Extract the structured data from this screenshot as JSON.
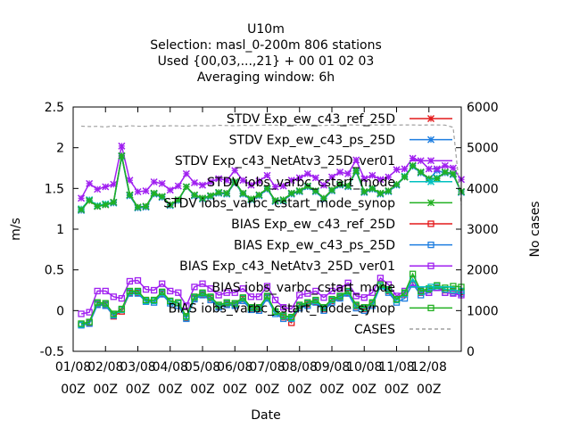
{
  "chart_data": {
    "type": "line",
    "title_lines": [
      "U10m",
      "Selection: masl_0-200m    806 stations",
      "Used {00,03,...,21} + 00 01 02 03",
      "Averaging window:  6h"
    ],
    "xlabel": "Date",
    "ylabel": "m/s",
    "y2label": "No cases",
    "ylim": [
      -0.5,
      2.5
    ],
    "y2lim": [
      0,
      6000
    ],
    "yticks": [
      "-0.5",
      "0",
      "0.5",
      "1",
      "1.5",
      "2",
      "2.5"
    ],
    "y2ticks": [
      "0",
      "1000",
      "2000",
      "3000",
      "4000",
      "5000",
      "6000"
    ],
    "xticks": [
      {
        "top": "01/08",
        "bottom": "00Z"
      },
      {
        "top": "02/08",
        "bottom": "00Z"
      },
      {
        "top": "03/08",
        "bottom": "00Z"
      },
      {
        "top": "04/08",
        "bottom": "00Z"
      },
      {
        "top": "05/08",
        "bottom": "00Z"
      },
      {
        "top": "06/08",
        "bottom": "00Z"
      },
      {
        "top": "07/08",
        "bottom": "00Z"
      },
      {
        "top": "08/08",
        "bottom": "00Z"
      },
      {
        "top": "09/08",
        "bottom": "00Z"
      },
      {
        "top": "10/08",
        "bottom": "00Z"
      },
      {
        "top": "11/08",
        "bottom": "00Z"
      },
      {
        "top": "12/08",
        "bottom": "00Z"
      }
    ],
    "x_days": [
      0.25,
      0.5,
      0.75,
      1.0,
      1.25,
      1.5,
      1.75,
      2.0,
      2.25,
      2.5,
      2.75,
      3.0,
      3.25,
      3.5,
      3.75,
      4.0,
      4.25,
      4.5,
      4.75,
      5.0,
      5.25,
      5.5,
      5.75,
      6.0,
      6.25,
      6.5,
      6.75,
      7.0,
      7.25,
      7.5,
      7.75,
      8.0,
      8.25,
      8.5,
      8.75,
      9.0,
      9.25,
      9.5,
      9.75,
      10.0,
      10.25,
      10.5,
      10.75,
      11.0,
      11.25,
      11.5,
      11.75,
      12.0
    ],
    "grid": false,
    "legend_position": "top-right",
    "series": [
      {
        "name": "STDV Exp_ew_c43_ref_25D",
        "color": "#e41a1c",
        "marker": "x",
        "axis": "y1",
        "values": [
          1.24,
          1.35,
          1.28,
          1.3,
          1.33,
          1.9,
          1.42,
          1.27,
          1.28,
          1.44,
          1.4,
          1.3,
          1.36,
          1.52,
          1.42,
          1.38,
          1.41,
          1.45,
          1.44,
          1.58,
          1.44,
          1.37,
          1.42,
          1.5,
          1.35,
          1.36,
          1.44,
          1.47,
          1.53,
          1.47,
          1.38,
          1.48,
          1.55,
          1.53,
          1.72,
          1.46,
          1.5,
          1.44,
          1.47,
          1.55,
          1.64,
          1.78,
          1.7,
          1.62,
          1.62,
          1.7,
          1.68,
          1.46
        ]
      },
      {
        "name": "STDV Exp_ew_c43_ps_25D",
        "color": "#1e7ee0",
        "marker": "x",
        "axis": "y1",
        "values": [
          1.23,
          1.36,
          1.28,
          1.3,
          1.32,
          1.89,
          1.41,
          1.26,
          1.27,
          1.43,
          1.39,
          1.29,
          1.35,
          1.52,
          1.41,
          1.37,
          1.4,
          1.44,
          1.43,
          1.57,
          1.43,
          1.36,
          1.41,
          1.49,
          1.34,
          1.35,
          1.43,
          1.46,
          1.52,
          1.46,
          1.37,
          1.47,
          1.54,
          1.52,
          1.71,
          1.45,
          1.49,
          1.43,
          1.46,
          1.54,
          1.64,
          1.77,
          1.69,
          1.61,
          1.72,
          1.69,
          1.67,
          1.45
        ]
      },
      {
        "name": "STDV Exp_c43_NetAtv3_25D_ver01",
        "color": "#a020f0",
        "marker": "x",
        "axis": "y1",
        "values": [
          1.38,
          1.56,
          1.49,
          1.52,
          1.55,
          2.02,
          1.6,
          1.46,
          1.47,
          1.58,
          1.56,
          1.48,
          1.53,
          1.68,
          1.57,
          1.54,
          1.58,
          1.62,
          1.6,
          1.72,
          1.6,
          1.54,
          1.59,
          1.66,
          1.52,
          1.53,
          1.6,
          1.63,
          1.68,
          1.63,
          1.54,
          1.64,
          1.7,
          1.68,
          1.85,
          1.62,
          1.66,
          1.61,
          1.64,
          1.73,
          1.74,
          1.87,
          1.84,
          1.74,
          1.74,
          1.78,
          1.75,
          1.61
        ]
      },
      {
        "name": "STDV iobs_varbc_cstart_mode",
        "color": "#00c0c0",
        "marker": "x",
        "axis": "y1",
        "values": [
          1.25,
          1.36,
          1.29,
          1.31,
          1.33,
          1.9,
          1.42,
          1.27,
          1.28,
          1.44,
          1.4,
          1.3,
          1.36,
          1.52,
          1.42,
          1.38,
          1.41,
          1.45,
          1.44,
          1.58,
          1.44,
          1.37,
          1.42,
          1.5,
          1.35,
          1.36,
          1.44,
          1.47,
          1.53,
          1.47,
          1.38,
          1.48,
          1.55,
          1.53,
          1.72,
          1.46,
          1.5,
          1.44,
          1.47,
          1.55,
          1.65,
          1.78,
          1.7,
          1.62,
          1.63,
          1.7,
          1.68,
          1.46
        ]
      },
      {
        "name": "STDV iobs_varbc_cstart_mode_synop",
        "color": "#22b022",
        "marker": "x",
        "axis": "y1",
        "values": [
          1.24,
          1.35,
          1.28,
          1.3,
          1.33,
          1.9,
          1.42,
          1.27,
          1.28,
          1.44,
          1.4,
          1.3,
          1.36,
          1.52,
          1.42,
          1.38,
          1.41,
          1.45,
          1.44,
          1.58,
          1.44,
          1.37,
          1.42,
          1.5,
          1.35,
          1.36,
          1.44,
          1.47,
          1.53,
          1.47,
          1.38,
          1.48,
          1.55,
          1.53,
          1.72,
          1.46,
          1.5,
          1.44,
          1.47,
          1.55,
          1.64,
          1.78,
          1.7,
          1.62,
          1.62,
          1.7,
          1.68,
          1.46
        ]
      },
      {
        "name": "BIAS Exp_ew_c43_ref_25D",
        "color": "#e41a1c",
        "marker": "square",
        "axis": "y1",
        "values": [
          -0.17,
          -0.15,
          0.08,
          0.07,
          -0.07,
          -0.01,
          0.22,
          0.22,
          0.12,
          0.12,
          0.21,
          0.11,
          0.09,
          -0.09,
          0.15,
          0.2,
          0.15,
          0.05,
          0.08,
          0.07,
          0.14,
          0.02,
          0.02,
          0.16,
          -0.02,
          -0.08,
          -0.15,
          0.05,
          0.08,
          0.11,
          0.02,
          0.12,
          0.16,
          0.22,
          0.05,
          0.02,
          0.08,
          0.3,
          0.24,
          0.13,
          0.2,
          0.38,
          0.22,
          0.25,
          0.28,
          0.25,
          0.24,
          0.23
        ]
      },
      {
        "name": "BIAS Exp_ew_c43_ps_25D",
        "color": "#1e7ee0",
        "marker": "square",
        "axis": "y1",
        "values": [
          -0.18,
          -0.16,
          0.07,
          0.06,
          -0.06,
          0.01,
          0.21,
          0.21,
          0.11,
          0.1,
          0.2,
          0.09,
          0.06,
          -0.1,
          0.14,
          0.19,
          0.13,
          0.04,
          0.07,
          0.06,
          0.12,
          0.01,
          0.0,
          0.15,
          -0.04,
          -0.1,
          -0.1,
          0.03,
          0.06,
          0.1,
          0.0,
          0.1,
          0.15,
          0.21,
          0.03,
          0.0,
          0.06,
          0.3,
          0.22,
          0.1,
          0.15,
          0.33,
          0.19,
          0.22,
          0.28,
          0.22,
          0.22,
          0.21
        ]
      },
      {
        "name": "BIAS Exp_c43_NetAtv3_25D_ver01",
        "color": "#a020f0",
        "marker": "square",
        "axis": "y1",
        "values": [
          -0.04,
          -0.02,
          0.24,
          0.24,
          0.17,
          0.15,
          0.36,
          0.37,
          0.26,
          0.25,
          0.33,
          0.24,
          0.22,
          0.06,
          0.29,
          0.33,
          0.27,
          0.19,
          0.22,
          0.22,
          0.27,
          0.17,
          0.17,
          0.3,
          0.13,
          0.04,
          0.02,
          0.19,
          0.21,
          0.24,
          0.16,
          0.24,
          0.27,
          0.34,
          0.18,
          0.16,
          0.22,
          0.4,
          0.32,
          0.18,
          0.24,
          0.32,
          0.25,
          0.22,
          0.28,
          0.22,
          0.21,
          0.19
        ]
      },
      {
        "name": "BIAS iobs_varbc_cstart_mode",
        "color": "#00c0c0",
        "marker": "square",
        "axis": "y1",
        "values": [
          -0.17,
          -0.14,
          0.09,
          0.08,
          -0.05,
          0.01,
          0.23,
          0.23,
          0.12,
          0.12,
          0.22,
          0.11,
          0.09,
          -0.08,
          0.16,
          0.21,
          0.16,
          0.06,
          0.09,
          0.08,
          0.15,
          0.03,
          0.03,
          0.17,
          -0.02,
          -0.07,
          -0.09,
          0.06,
          0.09,
          0.12,
          0.03,
          0.13,
          0.17,
          0.23,
          0.06,
          0.03,
          0.09,
          0.3,
          0.25,
          0.13,
          0.21,
          0.39,
          0.23,
          0.26,
          0.3,
          0.26,
          0.25,
          0.24
        ]
      },
      {
        "name": "BIAS iobs_varbc_cstart_mode_synop",
        "color": "#22b022",
        "marker": "square",
        "axis": "y1",
        "values": [
          -0.16,
          -0.14,
          0.1,
          0.09,
          -0.04,
          0.02,
          0.24,
          0.24,
          0.13,
          0.13,
          0.23,
          0.12,
          0.1,
          -0.07,
          0.17,
          0.22,
          0.17,
          0.07,
          0.1,
          0.09,
          0.16,
          0.04,
          0.04,
          0.18,
          -0.01,
          -0.06,
          -0.08,
          0.07,
          0.1,
          0.13,
          0.04,
          0.14,
          0.18,
          0.24,
          0.07,
          0.04,
          0.1,
          0.32,
          0.26,
          0.14,
          0.22,
          0.45,
          0.24,
          0.27,
          0.31,
          0.28,
          0.3,
          0.29
        ]
      },
      {
        "name": "CASES",
        "color": "#a0a0a0",
        "marker": "none",
        "dash": true,
        "axis": "y2",
        "values": [
          5530,
          5520,
          5525,
          5510,
          5535,
          5515,
          5540,
          5530,
          5525,
          5545,
          5530,
          5540,
          5535,
          5530,
          5545,
          5540,
          5535,
          5550,
          5545,
          5540,
          5550,
          5545,
          5550,
          5555,
          5550,
          5545,
          5555,
          5550,
          5555,
          5550,
          5545,
          5555,
          5550,
          5560,
          5555,
          5550,
          5560,
          5555,
          5560,
          5555,
          5560,
          5560,
          5555,
          5560,
          5560,
          5555,
          5500,
          3600
        ]
      }
    ]
  }
}
